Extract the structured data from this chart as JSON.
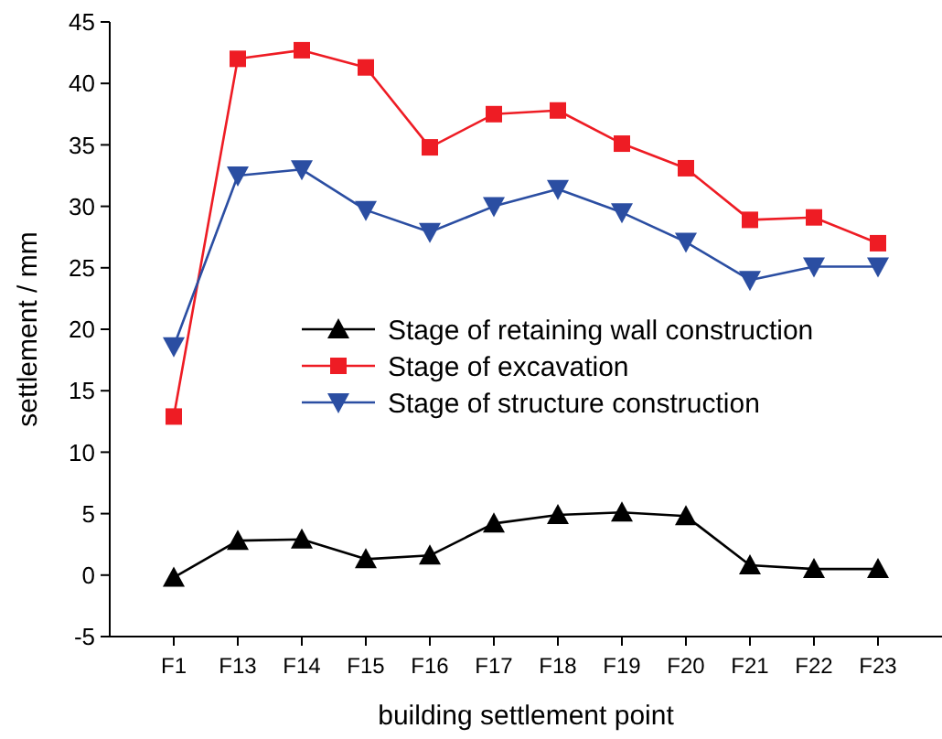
{
  "chart_data": {
    "type": "line",
    "xlabel": "building settlement point",
    "ylabel": "settlement / mm",
    "categories": [
      "F1",
      "F13",
      "F14",
      "F15",
      "F16",
      "F17",
      "F18",
      "F19",
      "F20",
      "F21",
      "F22",
      "F23"
    ],
    "series": [
      {
        "name": "Stage of retaining wall construction",
        "color": "#000000",
        "marker": "triangle",
        "values": [
          -0.2,
          2.8,
          2.9,
          1.3,
          1.6,
          4.2,
          4.9,
          5.1,
          4.8,
          0.8,
          0.5,
          0.5
        ]
      },
      {
        "name": "Stage of excavation",
        "color": "#ee1c24",
        "marker": "square",
        "values": [
          12.9,
          42,
          42.7,
          41.3,
          34.8,
          37.5,
          37.8,
          35.1,
          33.1,
          28.9,
          29.1,
          27
        ]
      },
      {
        "name": "Stage of structure construction",
        "color": "#2b4ea2",
        "marker": "triangle-down",
        "values": [
          18.6,
          32.5,
          33,
          29.7,
          27.9,
          30,
          31.4,
          29.5,
          27.1,
          24,
          25.1,
          25.1
        ]
      }
    ],
    "ylim": [
      -5,
      45
    ],
    "yticks": [
      -5,
      0,
      5,
      10,
      15,
      20,
      25,
      30,
      35,
      40,
      45
    ],
    "legend": "right",
    "grid": false,
    "line_style": "solid"
  }
}
